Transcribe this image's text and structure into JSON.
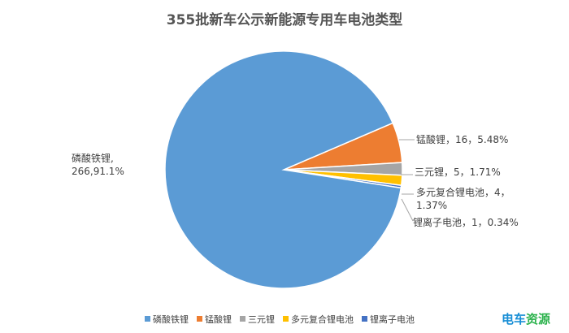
{
  "chart_data": {
    "type": "pie",
    "title": "355批新车公示新能源专用车电池类型",
    "slices": [
      {
        "name": "磷酸铁锂",
        "value": 266,
        "percent": 91.1,
        "color": "#5b9bd5",
        "label_lines": [
          "磷酸铁锂,",
          "266,91.1%"
        ]
      },
      {
        "name": "锰酸锂",
        "value": 16,
        "percent": 5.48,
        "color": "#ed7d31",
        "label_lines": [
          "锰酸锂，16，5.48%"
        ]
      },
      {
        "name": "三元锂",
        "value": 5,
        "percent": 1.71,
        "color": "#a5a5a5",
        "label_lines": [
          "三元锂，5，1.71%"
        ]
      },
      {
        "name": "多元复合锂电池",
        "value": 4,
        "percent": 1.37,
        "color": "#ffc000",
        "label_lines": [
          "多元复合锂电池，4，",
          "1.37%"
        ]
      },
      {
        "name": "锂离子电池",
        "value": 1,
        "percent": 0.34,
        "color": "#4472c4",
        "label_lines": [
          "锂离子电池，1，0.34%"
        ]
      }
    ],
    "legend": {
      "position": "bottom",
      "entries": [
        "磷酸铁锂",
        "锰酸锂",
        "三元锂",
        "多元复合锂电池",
        "锂离子电池"
      ]
    }
  },
  "watermark": {
    "part1": "电车",
    "part2": "资源"
  }
}
